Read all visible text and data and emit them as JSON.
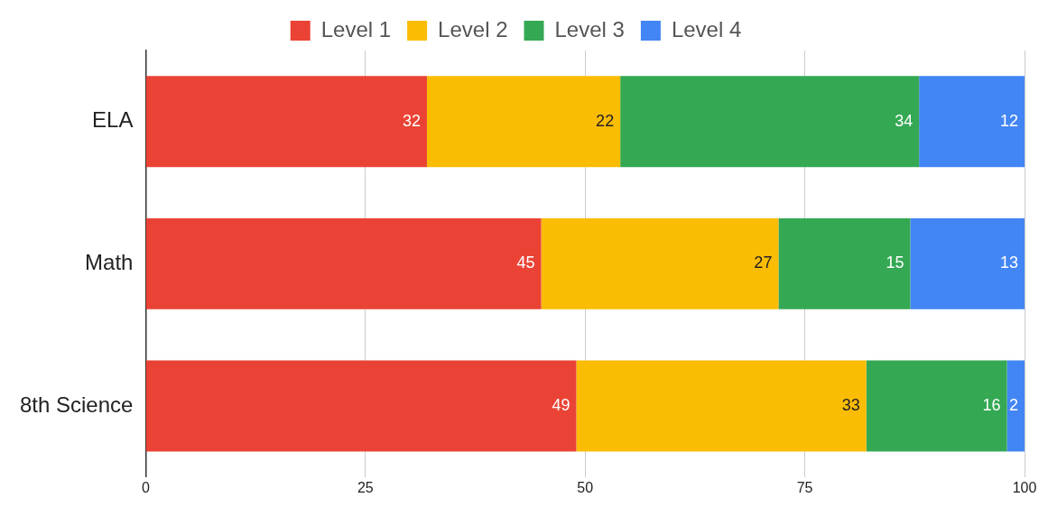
{
  "chart_data": {
    "type": "bar",
    "orientation": "horizontal",
    "stacked": true,
    "categories": [
      "ELA",
      "Math",
      "8th Science"
    ],
    "series": [
      {
        "name": "Level 1",
        "color": "#ea4335",
        "values": [
          32,
          45,
          49
        ]
      },
      {
        "name": "Level 2",
        "color": "#fbbc04",
        "values": [
          22,
          27,
          33
        ]
      },
      {
        "name": "Level 3",
        "color": "#34a853",
        "values": [
          34,
          15,
          16
        ]
      },
      {
        "name": "Level 4",
        "color": "#4285f4",
        "values": [
          12,
          13,
          2
        ]
      }
    ],
    "xlim": [
      0,
      100
    ],
    "xticks": [
      0,
      25,
      50,
      75,
      100
    ],
    "grid": "x",
    "legend": "top",
    "data_labels": true
  }
}
